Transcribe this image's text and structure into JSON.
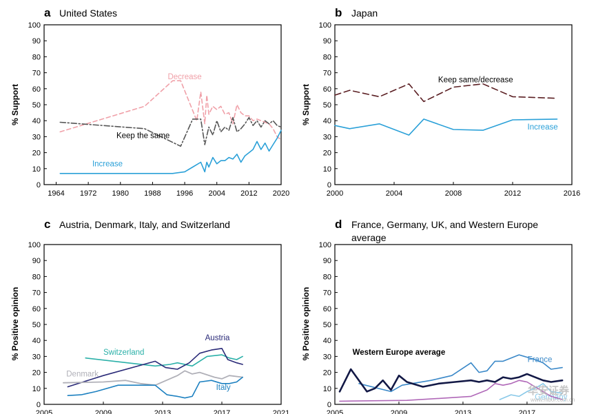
{
  "chart_data": [
    {
      "type": "line",
      "letter": "a",
      "title": "United States",
      "ylabel": "% Support",
      "xlim": [
        1961,
        2020
      ],
      "ylim": [
        0,
        100
      ],
      "xticks": [
        1964,
        1972,
        1980,
        1988,
        1996,
        2004,
        2012,
        2020
      ],
      "yticks": [
        0,
        10,
        20,
        30,
        40,
        50,
        60,
        70,
        80,
        90,
        100
      ],
      "series": [
        {
          "name": "Decrease",
          "color": "#f0a0a8",
          "dash": "6,4",
          "width": 1.6,
          "label_x": 1996,
          "label_y": 66,
          "points": [
            [
              1965,
              33
            ],
            [
              1986,
              49
            ],
            [
              1993,
              65
            ],
            [
              1995,
              65
            ],
            [
              1999,
              40
            ],
            [
              2000,
              58
            ],
            [
              2001,
              38
            ],
            [
              2001.5,
              56
            ],
            [
              2002,
              44
            ],
            [
              2003,
              49
            ],
            [
              2004,
              47
            ],
            [
              2005,
              49
            ],
            [
              2006,
              44
            ],
            [
              2007,
              45
            ],
            [
              2008,
              38
            ],
            [
              2009,
              50
            ],
            [
              2010,
              45
            ],
            [
              2011,
              43
            ],
            [
              2012,
              43
            ],
            [
              2013,
              40
            ],
            [
              2014,
              41
            ],
            [
              2015,
              40
            ],
            [
              2016,
              39
            ],
            [
              2017,
              38
            ],
            [
              2018,
              35
            ],
            [
              2019,
              30
            ],
            [
              2020,
              28
            ]
          ]
        },
        {
          "name": "Keep the same",
          "color": "#555555",
          "dash": "8,3,2,3",
          "width": 1.6,
          "label_x": 1979,
          "label_y": 29,
          "points": [
            [
              1965,
              39
            ],
            [
              1986,
              35
            ],
            [
              1995,
              24
            ],
            [
              1998,
              41
            ],
            [
              2000,
              41
            ],
            [
              2001,
              25
            ],
            [
              2002,
              36
            ],
            [
              2003,
              31
            ],
            [
              2004,
              40
            ],
            [
              2005,
              33
            ],
            [
              2006,
              36
            ],
            [
              2007,
              34
            ],
            [
              2008,
              42
            ],
            [
              2009,
              33
            ],
            [
              2010,
              35
            ],
            [
              2011,
              38
            ],
            [
              2012,
              42
            ],
            [
              2013,
              37
            ],
            [
              2014,
              40
            ],
            [
              2015,
              36
            ],
            [
              2016,
              40
            ],
            [
              2017,
              38
            ],
            [
              2018,
              40
            ],
            [
              2019,
              37
            ],
            [
              2020,
              36
            ]
          ]
        },
        {
          "name": "Increase",
          "color": "#2aa0d8",
          "dash": "",
          "width": 1.6,
          "label_x": 1973,
          "label_y": 11.5,
          "points": [
            [
              1965,
              7
            ],
            [
              1993,
              7
            ],
            [
              1996,
              8
            ],
            [
              1998,
              11
            ],
            [
              2000,
              14
            ],
            [
              2001,
              8
            ],
            [
              2001.5,
              14
            ],
            [
              2002,
              11
            ],
            [
              2003,
              17
            ],
            [
              2004,
              13
            ],
            [
              2005,
              15
            ],
            [
              2006,
              15
            ],
            [
              2007,
              17
            ],
            [
              2008,
              16
            ],
            [
              2009,
              19
            ],
            [
              2010,
              14
            ],
            [
              2011,
              18
            ],
            [
              2012,
              20
            ],
            [
              2013,
              22
            ],
            [
              2014,
              27
            ],
            [
              2015,
              22
            ],
            [
              2016,
              26
            ],
            [
              2017,
              21
            ],
            [
              2018,
              25
            ],
            [
              2019,
              29
            ],
            [
              2020,
              34
            ]
          ]
        }
      ]
    },
    {
      "type": "line",
      "letter": "b",
      "title": "Japan",
      "ylabel": "% Support",
      "xlim": [
        2000,
        2016
      ],
      "ylim": [
        0,
        100
      ],
      "xticks": [
        2000,
        2004,
        2008,
        2012,
        2016
      ],
      "yticks": [
        0,
        10,
        20,
        30,
        40,
        50,
        60,
        70,
        80,
        90,
        100
      ],
      "series": [
        {
          "name": "Keep same/decrease",
          "color": "#5a1e22",
          "dash": "9,5",
          "width": 1.6,
          "label_x": 2009.5,
          "label_y": 64,
          "points": [
            [
              2000,
              56
            ],
            [
              2001,
              59
            ],
            [
              2003,
              55
            ],
            [
              2005,
              63
            ],
            [
              2006,
              52
            ],
            [
              2008,
              61
            ],
            [
              2010,
              63
            ],
            [
              2012,
              55
            ],
            [
              2015,
              54
            ]
          ]
        },
        {
          "name": "Increase",
          "color": "#2aa0d8",
          "dash": "",
          "width": 1.6,
          "label_x": 2013,
          "label_y": 34.5,
          "points": [
            [
              2000,
              37
            ],
            [
              2001,
              35
            ],
            [
              2003,
              38
            ],
            [
              2005,
              31
            ],
            [
              2006,
              41
            ],
            [
              2008,
              34.5
            ],
            [
              2010,
              34
            ],
            [
              2012,
              40.5
            ],
            [
              2015,
              41
            ]
          ]
        }
      ]
    },
    {
      "type": "line",
      "letter": "c",
      "title": "Austria, Denmark, Italy, and Switzerland",
      "ylabel": "% Positive opinion",
      "xlim": [
        2005,
        2021
      ],
      "ylim": [
        0,
        100
      ],
      "xticks": [
        2005,
        2009,
        2013,
        2017,
        2021
      ],
      "yticks": [
        0,
        10,
        20,
        30,
        40,
        50,
        60,
        70,
        80,
        90,
        100
      ],
      "series": [
        {
          "name": "Switzerland",
          "color": "#2ab0a8",
          "dash": "",
          "width": 1.6,
          "label_x": 2009,
          "label_y": 31,
          "points": [
            [
              2007.8,
              29
            ],
            [
              2012.5,
              24
            ],
            [
              2013.5,
              25
            ],
            [
              2014,
              26
            ],
            [
              2015,
              24
            ],
            [
              2016,
              30
            ],
            [
              2017,
              31
            ],
            [
              2017.5,
              29
            ],
            [
              2018,
              28
            ],
            [
              2018.4,
              30
            ]
          ]
        },
        {
          "name": "Austria",
          "color": "#2a2a78",
          "dash": "",
          "width": 1.6,
          "label_x": 2016.7,
          "label_y": 40,
          "points": [
            [
              2006.6,
              11
            ],
            [
              2009,
              18
            ],
            [
              2012.5,
              27
            ],
            [
              2013.2,
              23
            ],
            [
              2014,
              22
            ],
            [
              2014.8,
              26
            ],
            [
              2015.5,
              32
            ],
            [
              2016.3,
              34
            ],
            [
              2017,
              35
            ],
            [
              2017.4,
              28
            ],
            [
              2018,
              26
            ],
            [
              2018.4,
              25
            ]
          ]
        },
        {
          "name": "Denmark",
          "color": "#b0b0b8",
          "dash": "",
          "width": 1.8,
          "label_x": 2006.5,
          "label_y": 17.5,
          "points": [
            [
              2006.3,
              13.5
            ],
            [
              2009,
              14
            ],
            [
              2010.5,
              15
            ],
            [
              2011.5,
              13
            ],
            [
              2012.5,
              12
            ],
            [
              2014,
              18
            ],
            [
              2014.5,
              21
            ],
            [
              2015,
              19
            ],
            [
              2015.5,
              20
            ],
            [
              2016.5,
              17
            ],
            [
              2017,
              16
            ],
            [
              2017.5,
              18
            ],
            [
              2018.4,
              17
            ]
          ]
        },
        {
          "name": "Italy",
          "color": "#1c80c0",
          "dash": "",
          "width": 1.6,
          "label_x": 2017.1,
          "label_y": 9,
          "points": [
            [
              2006.6,
              5.5
            ],
            [
              2007.5,
              6
            ],
            [
              2008.5,
              8
            ],
            [
              2010,
              12
            ],
            [
              2011,
              12
            ],
            [
              2012.5,
              12
            ],
            [
              2013.3,
              6
            ],
            [
              2014,
              5
            ],
            [
              2014.5,
              4
            ],
            [
              2015,
              5
            ],
            [
              2015.5,
              14
            ],
            [
              2016.3,
              15
            ],
            [
              2017,
              13
            ],
            [
              2017.5,
              13
            ],
            [
              2018,
              14
            ],
            [
              2018.4,
              17
            ]
          ]
        }
      ]
    },
    {
      "type": "line",
      "letter": "d",
      "title": "France, Germany, UK, and Western Europe average",
      "ylabel": "% Positive opinion",
      "xlim": [
        2005,
        2019.8
      ],
      "ylim": [
        0,
        100
      ],
      "xticks": [
        2005,
        2009,
        2013,
        2017
      ],
      "yticks": [
        0,
        10,
        20,
        30,
        40,
        50,
        60,
        70,
        80,
        90,
        100
      ],
      "series": [
        {
          "name": "France",
          "color": "#3a88c8",
          "dash": "",
          "width": 1.6,
          "label_x": 2017.8,
          "label_y": 26.5,
          "points": [
            [
              2006.5,
              13
            ],
            [
              2008.5,
              8
            ],
            [
              2009.2,
              12
            ],
            [
              2011,
              15
            ],
            [
              2012.3,
              18
            ],
            [
              2013.5,
              26
            ],
            [
              2014,
              20
            ],
            [
              2014.5,
              21
            ],
            [
              2015,
              27
            ],
            [
              2015.5,
              27
            ],
            [
              2016,
              29
            ],
            [
              2016.5,
              31
            ],
            [
              2017.5,
              28
            ],
            [
              2018,
              26
            ],
            [
              2018.5,
              22
            ],
            [
              2019.2,
              23
            ]
          ]
        },
        {
          "name": "Western Europe average",
          "color": "#121845",
          "dash": "",
          "width": 2.6,
          "label_x": 2006.1,
          "label_y": 31,
          "points": [
            [
              2005.3,
              8
            ],
            [
              2006,
              22
            ],
            [
              2007,
              8
            ],
            [
              2007.5,
              10
            ],
            [
              2008,
              15
            ],
            [
              2008.5,
              9
            ],
            [
              2009,
              18
            ],
            [
              2009.5,
              14
            ],
            [
              2010.5,
              11
            ],
            [
              2011.5,
              13
            ],
            [
              2012.5,
              14
            ],
            [
              2013.5,
              15
            ],
            [
              2014,
              14
            ],
            [
              2014.5,
              15
            ],
            [
              2015,
              14
            ],
            [
              2015.5,
              17
            ],
            [
              2016,
              16
            ],
            [
              2016.5,
              17
            ],
            [
              2017,
              19
            ],
            [
              2017.5,
              17
            ],
            [
              2018,
              15
            ],
            [
              2018.5,
              14
            ],
            [
              2019.2,
              15
            ]
          ]
        },
        {
          "name": "Germany",
          "color": "#88c8e8",
          "dash": "",
          "width": 1.6,
          "label_x": 2018.5,
          "label_y": 3,
          "points": [
            [
              2015.3,
              3
            ],
            [
              2016,
              6
            ],
            [
              2016.5,
              5
            ],
            [
              2017,
              8
            ],
            [
              2017.5,
              10
            ],
            [
              2018,
              13
            ],
            [
              2018.5,
              8
            ],
            [
              2019.2,
              7
            ]
          ]
        },
        {
          "name": "",
          "color": "#b068b8",
          "dash": "",
          "width": 1.6,
          "points": [
            [
              2005.3,
              2
            ],
            [
              2009.5,
              2.5
            ],
            [
              2012,
              4
            ],
            [
              2013.5,
              5
            ],
            [
              2014.5,
              9
            ],
            [
              2015,
              13
            ],
            [
              2015.5,
              12
            ],
            [
              2016,
              13
            ],
            [
              2016.5,
              15
            ],
            [
              2017,
              14
            ],
            [
              2017.5,
              11
            ],
            [
              2018,
              8
            ],
            [
              2018.5,
              5
            ],
            [
              2019.2,
              3
            ]
          ]
        }
      ]
    }
  ],
  "watermark": {
    "text": "华安证券",
    "subtext": "www.hibor.com.cn"
  }
}
